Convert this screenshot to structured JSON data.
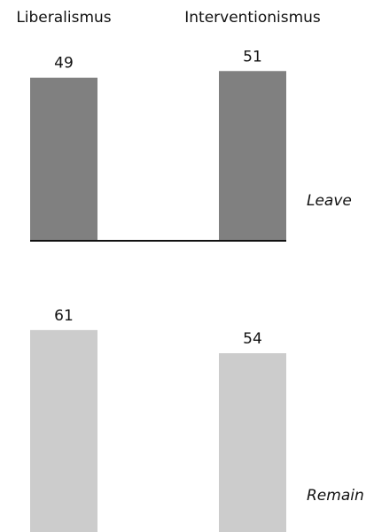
{
  "chart_data": {
    "type": "bar",
    "categories": [
      "Liberalismus",
      "Interventionismus"
    ],
    "ylim": [
      0,
      100
    ],
    "grid": false,
    "panels": [
      {
        "name": "Leave",
        "values": [
          49,
          51
        ],
        "color": "#808080",
        "baseline": true
      },
      {
        "name": "Remain",
        "values": [
          61,
          54
        ],
        "color": "#cccccc",
        "baseline": false
      }
    ]
  }
}
